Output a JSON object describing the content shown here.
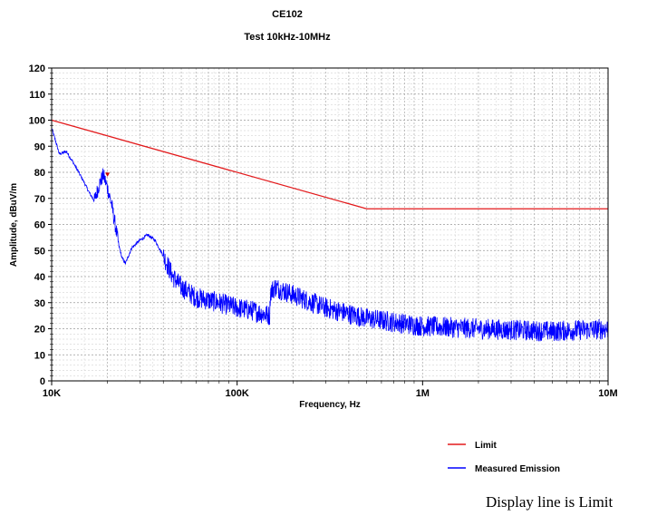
{
  "chart_data": {
    "type": "line",
    "title": "CE102",
    "subtitle": "Test 10kHz-10MHz",
    "xlabel": "Frequency, Hz",
    "ylabel": "Amplitude, dBuV/m",
    "x_scale": "log",
    "xlim": [
      10000,
      10000000
    ],
    "ylim": [
      0,
      120
    ],
    "x_ticks": [
      {
        "value": 10000,
        "label": "10K"
      },
      {
        "value": 100000,
        "label": "100K"
      },
      {
        "value": 1000000,
        "label": "1M"
      },
      {
        "value": 10000000,
        "label": "10M"
      }
    ],
    "y_ticks": [
      0,
      10,
      20,
      30,
      40,
      50,
      60,
      70,
      80,
      90,
      100,
      110,
      120
    ],
    "grid": true,
    "legend_position": "bottom-right",
    "series": [
      {
        "name": "Limit",
        "color": "#e31a1c",
        "x": [
          10000,
          500000,
          10000000
        ],
        "y": [
          100,
          66,
          66
        ]
      },
      {
        "name": "Measured Emission",
        "color": "#0000ff",
        "x": [
          10000,
          10500,
          11000,
          12000,
          13000,
          14000,
          15000,
          16000,
          17000,
          18000,
          19000,
          20000,
          21000,
          22000,
          23000,
          24000,
          25000,
          27000,
          30000,
          33000,
          36000,
          40000,
          45000,
          50000,
          60000,
          80000,
          100000,
          120000,
          150000,
          151000,
          160000,
          200000,
          300000,
          500000,
          1000000,
          2000000,
          5000000,
          10000000
        ],
        "y": [
          97,
          92,
          87,
          88,
          84,
          80,
          76,
          72,
          69,
          75,
          79,
          74,
          68,
          60,
          52,
          47,
          45,
          51,
          54,
          56,
          54,
          48,
          40,
          36,
          32,
          30,
          28,
          27,
          25,
          34,
          36,
          33,
          28,
          24,
          21,
          20,
          19,
          20
        ],
        "noise_band": 8
      }
    ],
    "marker": {
      "x": 20000,
      "y": 79,
      "color": "#cc0000"
    }
  },
  "footer_note": "Display line is Limit"
}
